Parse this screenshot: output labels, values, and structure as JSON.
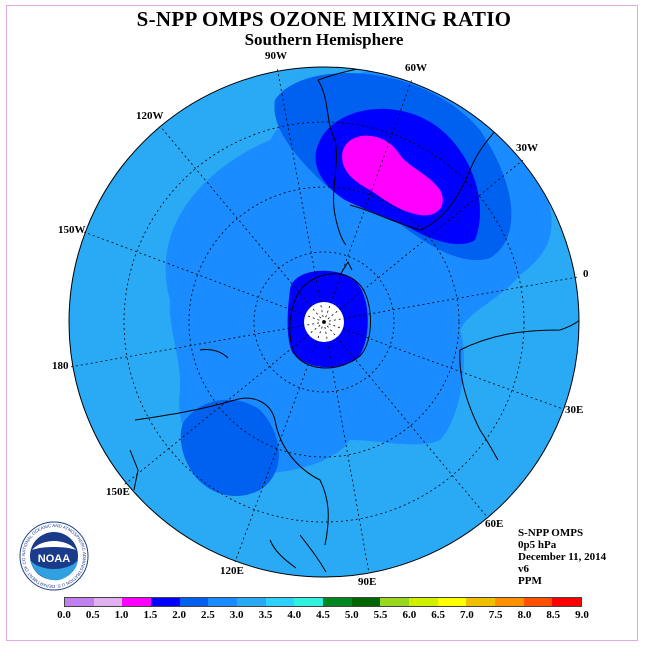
{
  "title": "S-NPP OMPS OZONE MIXING RATIO",
  "subtitle": "Southern Hemisphere",
  "longitude_labels": [
    "90W",
    "60W",
    "30W",
    "0",
    "30E",
    "60E",
    "90E",
    "120E",
    "150E",
    "180",
    "150W",
    "120W"
  ],
  "info": {
    "instrument": "S-NPP OMPS",
    "level": "0p5 hPa",
    "date": "December 11, 2014",
    "version": "v6",
    "units": "PPM"
  },
  "logo": {
    "name": "noaa-logo",
    "text": "NOAA",
    "ring_text": "NATIONAL OCEANIC AND ATMOSPHERIC ADMINISTRATION U.S. DEPARTMENT OF COMMERCE"
  },
  "colorbar": {
    "labels": [
      "0.0",
      "0.5",
      "1.0",
      "1.5",
      "2.0",
      "2.5",
      "3.0",
      "3.5",
      "4.0",
      "4.5",
      "5.0",
      "5.5",
      "6.0",
      "6.5",
      "7.0",
      "7.5",
      "8.0",
      "8.5",
      "9.0"
    ],
    "colors": [
      "#c080f0",
      "#e0b0f0",
      "#ff00ff",
      "#0000ff",
      "#0060f0",
      "#1a8cff",
      "#2aaaf5",
      "#30d0ff",
      "#30f0e0",
      "#008820",
      "#006600",
      "#98d820",
      "#d0f000",
      "#ffff00",
      "#f0c000",
      "#ff9000",
      "#ff5000",
      "#ff0000",
      "#8a5030"
    ]
  },
  "map_colors": {
    "background": "#1a8cff",
    "ring_3_0": "#2aaaf5",
    "band_2_0": "#0060f0",
    "core_1_5": "#0000ff",
    "peak_1_0": "#ff00ff",
    "pole": "#ffffff"
  }
}
